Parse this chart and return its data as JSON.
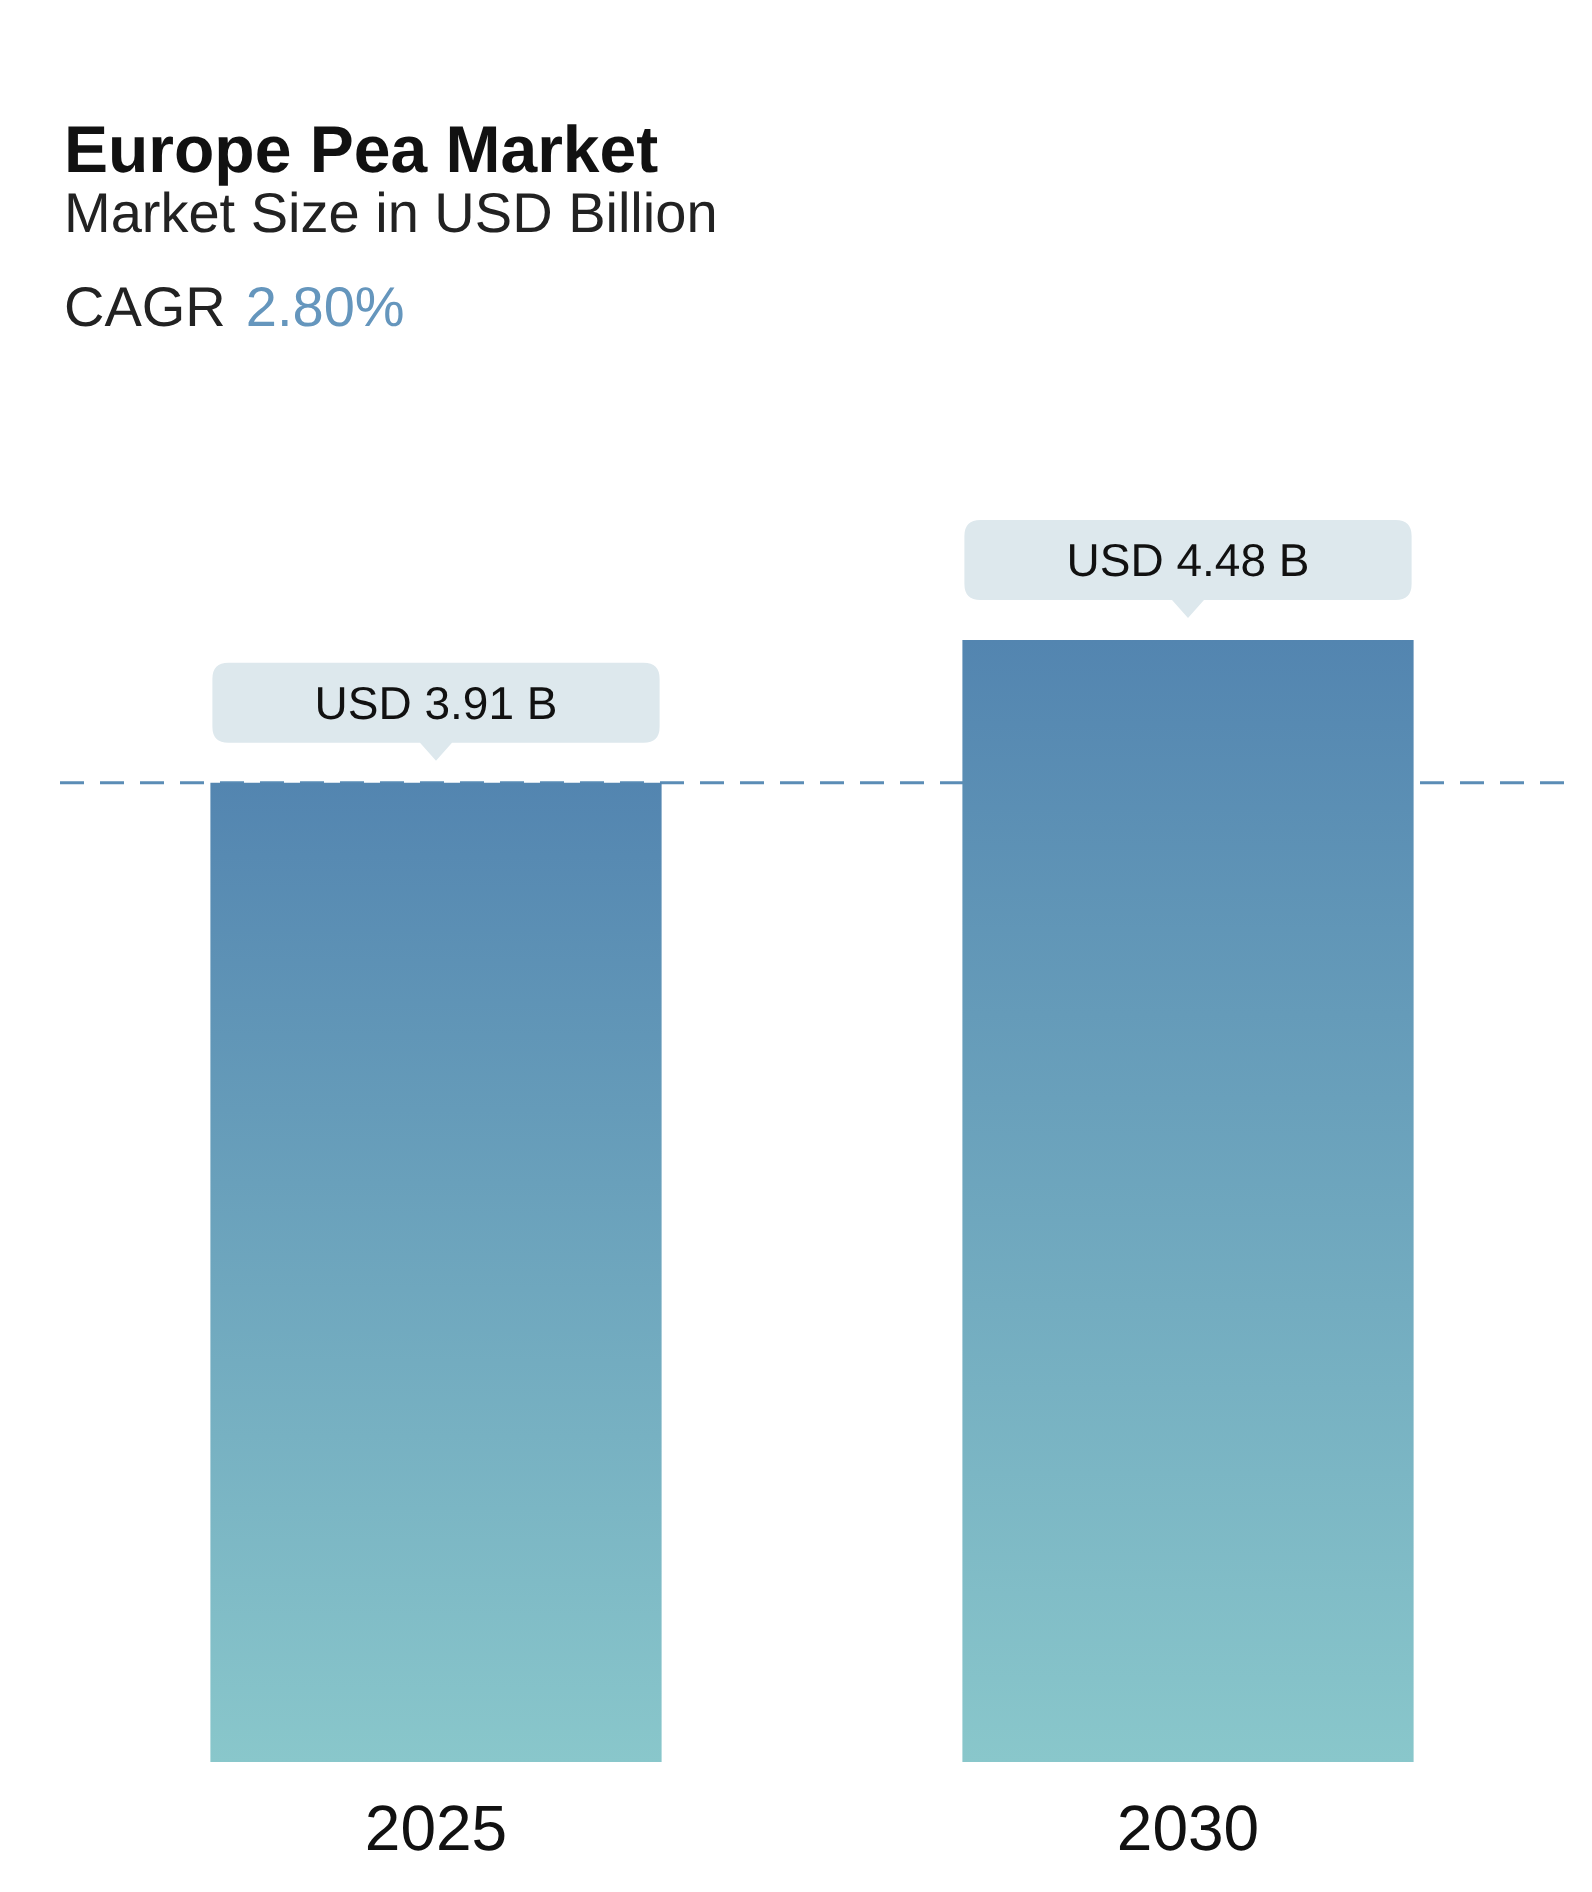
{
  "chart_data": {
    "type": "bar",
    "title": "Europe Pea Market",
    "subtitle": "Market Size in USD Billion",
    "annotations": [
      "CAGR",
      "2.80%"
    ],
    "categories": [
      "2025",
      "2030"
    ],
    "values": [
      3.91,
      4.48
    ],
    "color": "#6da9bf",
    "value_labels": [
      "USD 3.91 B",
      "USD 4.48 B"
    ],
    "ref_lines": [
      {
        "axis": "y",
        "value": 3.91,
        "color": "#5b8db6",
        "line_style": "dashed"
      }
    ]
  }
}
